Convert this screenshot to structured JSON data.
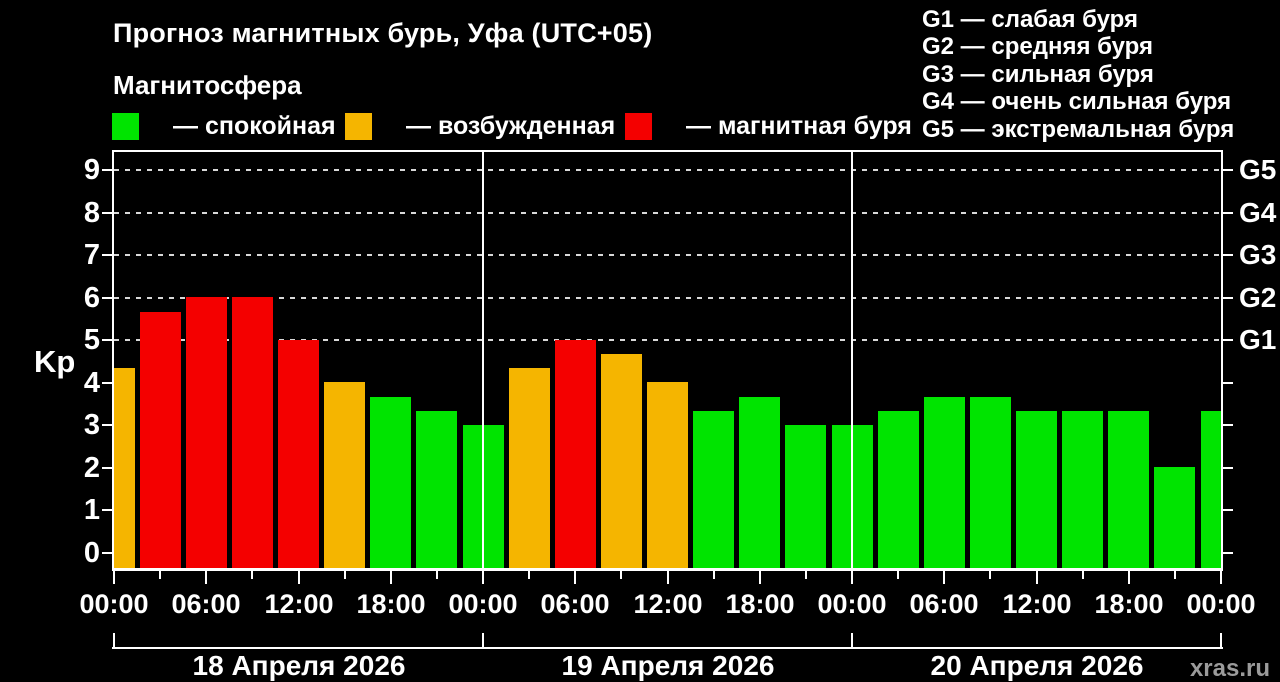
{
  "page": {
    "title": "Прогноз магнитных бурь, Уфа (UTC+05)",
    "subtitle": "Магнитосфера",
    "watermark": "xras.ru"
  },
  "colors": {
    "quiet": "#00E400",
    "excited": "#F5B500",
    "storm": "#F40000",
    "axis": "#FFFFFF",
    "watermark": "#9B9B9B"
  },
  "legend": {
    "items": [
      {
        "state": "quiet",
        "label": "— спокойная"
      },
      {
        "state": "excited",
        "label": "— возбужденная"
      },
      {
        "state": "storm",
        "label": "— магнитная буря"
      }
    ]
  },
  "g_scale": [
    "G1 — слабая буря",
    "G2 — средняя буря",
    "G3 — сильная буря",
    "G4 — очень сильная буря",
    "G5 — экстремальная буря"
  ],
  "chart_data": {
    "type": "bar",
    "title": "Прогноз магнитных бурь, Уфа (UTC+05)",
    "ylabel": "Kp",
    "ylim": [
      0,
      9
    ],
    "yticks": [
      0,
      1,
      2,
      3,
      4,
      5,
      6,
      7,
      8,
      9
    ],
    "gridlines_kp": [
      5,
      6,
      7,
      8,
      9
    ],
    "right_axis": [
      {
        "kp": 5,
        "label": "G1"
      },
      {
        "kp": 6,
        "label": "G2"
      },
      {
        "kp": 7,
        "label": "G3"
      },
      {
        "kp": 8,
        "label": "G4"
      },
      {
        "kp": 9,
        "label": "G5"
      }
    ],
    "hours_span": 72,
    "bar_interval_hours": 3,
    "time_tick_labels": [
      "00:00",
      "06:00",
      "12:00",
      "18:00",
      "00:00",
      "06:00",
      "12:00",
      "18:00",
      "00:00",
      "06:00",
      "12:00",
      "18:00",
      "00:00"
    ],
    "days": [
      {
        "label": "18 Апреля 2026",
        "start_hour": 0,
        "end_hour": 24
      },
      {
        "label": "19 Апреля 2026",
        "start_hour": 24,
        "end_hour": 48
      },
      {
        "label": "20 Апреля 2026",
        "start_hour": 48,
        "end_hour": 72
      }
    ],
    "bars": [
      {
        "hour": 0,
        "kp": 4.33,
        "state": "excited"
      },
      {
        "hour": 3,
        "kp": 5.67,
        "state": "storm"
      },
      {
        "hour": 6,
        "kp": 6,
        "state": "storm"
      },
      {
        "hour": 9,
        "kp": 6,
        "state": "storm"
      },
      {
        "hour": 12,
        "kp": 5,
        "state": "storm"
      },
      {
        "hour": 15,
        "kp": 4,
        "state": "excited"
      },
      {
        "hour": 18,
        "kp": 3.67,
        "state": "quiet"
      },
      {
        "hour": 21,
        "kp": 3.33,
        "state": "quiet"
      },
      {
        "hour": 24,
        "kp": 3,
        "state": "quiet"
      },
      {
        "hour": 27,
        "kp": 4.33,
        "state": "excited"
      },
      {
        "hour": 30,
        "kp": 5,
        "state": "storm"
      },
      {
        "hour": 33,
        "kp": 4.67,
        "state": "excited"
      },
      {
        "hour": 36,
        "kp": 4,
        "state": "excited"
      },
      {
        "hour": 39,
        "kp": 3.33,
        "state": "quiet"
      },
      {
        "hour": 42,
        "kp": 3.67,
        "state": "quiet"
      },
      {
        "hour": 45,
        "kp": 3,
        "state": "quiet"
      },
      {
        "hour": 48,
        "kp": 3,
        "state": "quiet"
      },
      {
        "hour": 51,
        "kp": 3.33,
        "state": "quiet"
      },
      {
        "hour": 54,
        "kp": 3.67,
        "state": "quiet"
      },
      {
        "hour": 57,
        "kp": 3.67,
        "state": "quiet"
      },
      {
        "hour": 60,
        "kp": 3.33,
        "state": "quiet"
      },
      {
        "hour": 63,
        "kp": 3.33,
        "state": "quiet"
      },
      {
        "hour": 66,
        "kp": 3.33,
        "state": "quiet"
      },
      {
        "hour": 69,
        "kp": 2,
        "state": "quiet"
      },
      {
        "hour": 72,
        "kp": 3.33,
        "state": "quiet"
      }
    ]
  }
}
